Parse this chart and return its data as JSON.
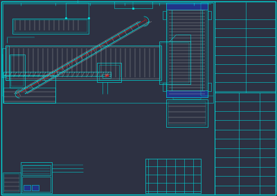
{
  "bg_color": "#2d3142",
  "line_color": "#00d8d8",
  "line_color_dim": "#00aaaa",
  "white_line": "#aaaaaa",
  "red_line": "#bb2222",
  "blue_fill": "#223388",
  "blue_line": "#3344aa",
  "gray_line": "#888888",
  "dark_fill": "#1e2235",
  "border_color": "#444455"
}
